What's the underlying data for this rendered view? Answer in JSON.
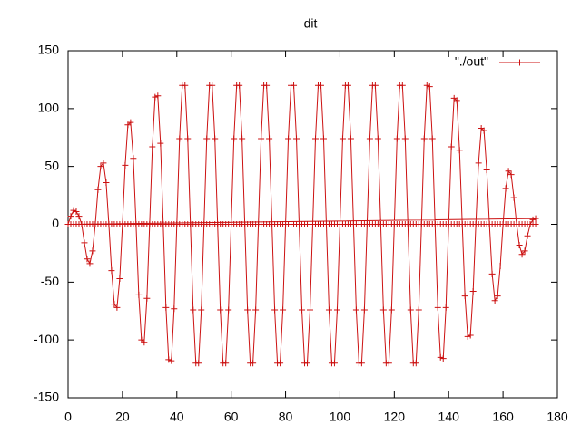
{
  "chart_data": {
    "type": "linespoints",
    "title": "dit",
    "xlim": [
      0,
      180
    ],
    "xticks": [
      0,
      20,
      40,
      60,
      80,
      100,
      120,
      140,
      160,
      180
    ],
    "ylim": [
      -150,
      150
    ],
    "yticks": [
      -150,
      -100,
      -50,
      0,
      50,
      100,
      150
    ],
    "legend": "top-right",
    "series": [
      {
        "name": "\"./out\"",
        "color": "#cc1111",
        "x": [
          0,
          1,
          2,
          3,
          4,
          5,
          6,
          7,
          8,
          9,
          10,
          11,
          12,
          13,
          14,
          15,
          16,
          17,
          18,
          19,
          20,
          21,
          22,
          23,
          24,
          25,
          26,
          27,
          28,
          29,
          30,
          31,
          32,
          33,
          34,
          35,
          36,
          37,
          38,
          39,
          40,
          41,
          42,
          43,
          44,
          45,
          46,
          47,
          48,
          49,
          50,
          51,
          52,
          53,
          54,
          55,
          56,
          57,
          58,
          59,
          60,
          61,
          62,
          63,
          64,
          65,
          66,
          67,
          68,
          69,
          70,
          71,
          72,
          73,
          74,
          75,
          76,
          77,
          78,
          79,
          80,
          81,
          82,
          83,
          84,
          85,
          86,
          87,
          88,
          89,
          90,
          91,
          92,
          93,
          94,
          95,
          96,
          97,
          98,
          99,
          100,
          101,
          102,
          103,
          104,
          105,
          106,
          107,
          108,
          109,
          110,
          111,
          112,
          113,
          114,
          115,
          116,
          117,
          118,
          119,
          120,
          121,
          122,
          123,
          124,
          125,
          126,
          127,
          128,
          129,
          130,
          131,
          132,
          133,
          134,
          135,
          136,
          137,
          138,
          139,
          140,
          141,
          142,
          143,
          144,
          145,
          146,
          147,
          148,
          149,
          150,
          151,
          152,
          153,
          154,
          155,
          156,
          157,
          158,
          159,
          160,
          161,
          162,
          163,
          164,
          165,
          166,
          167,
          168,
          169,
          170,
          171,
          172,
          0,
          1,
          2,
          3,
          4,
          5,
          6,
          7,
          8,
          9,
          10,
          11,
          12,
          13,
          14,
          15,
          16,
          17,
          18,
          19,
          20,
          21,
          22,
          23,
          24,
          25,
          26,
          27,
          28,
          29,
          30,
          31,
          32,
          33,
          34,
          35,
          36,
          37,
          38,
          39,
          40,
          41,
          42,
          43,
          44,
          45,
          46,
          47,
          48,
          49,
          50,
          51,
          52,
          53,
          54,
          55,
          56,
          57,
          58,
          59,
          60,
          61,
          62,
          63,
          64,
          65,
          66,
          67,
          68,
          69,
          70,
          71,
          72,
          73,
          74,
          75,
          76,
          77,
          78,
          79,
          80,
          81,
          82,
          83,
          84,
          85,
          86,
          87,
          88,
          89,
          90,
          91,
          92,
          93,
          94,
          95,
          96,
          97,
          98,
          99,
          100,
          101,
          102,
          103,
          104,
          105,
          106,
          107,
          108,
          109,
          110,
          111,
          112,
          113,
          114,
          115,
          116,
          117,
          118,
          119,
          120,
          121,
          122,
          123,
          124,
          125,
          126,
          127,
          128,
          129,
          130,
          131,
          132,
          133,
          134,
          135,
          136,
          137,
          138,
          139,
          140,
          141,
          142,
          143,
          144,
          145,
          146,
          147,
          148,
          149,
          150,
          151,
          152,
          153,
          154,
          155,
          156,
          157,
          158,
          159,
          160,
          161,
          162,
          163,
          164,
          165,
          166,
          167,
          168,
          169,
          170,
          171,
          172
        ],
        "values": [
          0,
          7,
          12,
          11,
          7,
          0,
          -16,
          -30,
          -34,
          -23,
          0,
          30,
          50,
          53,
          36,
          0,
          -40,
          -69,
          -72,
          -47,
          0,
          51,
          86,
          88,
          57,
          0,
          -61,
          -100,
          -102,
          -64,
          0,
          67,
          110,
          111,
          70,
          0,
          -72,
          -117,
          -118,
          -73,
          0,
          74,
          120,
          120,
          74,
          0,
          -74,
          -120,
          -120,
          -74,
          0,
          74,
          120,
          120,
          74,
          0,
          -74,
          -120,
          -120,
          -74,
          0,
          74,
          120,
          120,
          74,
          0,
          -74,
          -120,
          -120,
          -74,
          0,
          74,
          120,
          120,
          74,
          0,
          -74,
          -120,
          -120,
          -74,
          0,
          74,
          120,
          120,
          74,
          0,
          -74,
          -120,
          -120,
          -74,
          0,
          74,
          120,
          120,
          74,
          0,
          -74,
          -120,
          -120,
          -74,
          0,
          74,
          120,
          120,
          74,
          0,
          -74,
          -120,
          -120,
          -74,
          0,
          74,
          120,
          120,
          74,
          0,
          -74,
          -120,
          -120,
          -74,
          0,
          74,
          120,
          120,
          74,
          0,
          -74,
          -120,
          -120,
          -74,
          0,
          74,
          120,
          119,
          74,
          0,
          -72,
          -115,
          -116,
          -72,
          0,
          67,
          109,
          107,
          64,
          0,
          -62,
          -97,
          -96,
          -58,
          0,
          53,
          83,
          81,
          47,
          0,
          -43,
          -66,
          -62,
          -36,
          0,
          31,
          46,
          43,
          23,
          0,
          -18,
          -26,
          -23,
          -10,
          0,
          4,
          5,
          0,
          0,
          0,
          0,
          0,
          0,
          0,
          0,
          0,
          0,
          0,
          0,
          0,
          0,
          0,
          0,
          0,
          0,
          0,
          0,
          0,
          0,
          0,
          0,
          0,
          0,
          0,
          0,
          0,
          0,
          0,
          0,
          0,
          0,
          0,
          0,
          0,
          0,
          0,
          0,
          0,
          0,
          0,
          0,
          0,
          0,
          0,
          0,
          0,
          0,
          0,
          0,
          0,
          0,
          0,
          0,
          0,
          0,
          0,
          0,
          0,
          0,
          0,
          0,
          0,
          0,
          0,
          0,
          0,
          0,
          0,
          0,
          0,
          0,
          0,
          0,
          0,
          0,
          0,
          0,
          0,
          0,
          0,
          0,
          0,
          0,
          0,
          0,
          0,
          0,
          0,
          0,
          0,
          0,
          0,
          0,
          0,
          0,
          0,
          0,
          0,
          0,
          0,
          0,
          0,
          0,
          0,
          0,
          0,
          0,
          0,
          0,
          0,
          0,
          0,
          0,
          0,
          0,
          0,
          0,
          0,
          0,
          0,
          0,
          0,
          0,
          0,
          0,
          0,
          0,
          0,
          0,
          0,
          0,
          0,
          0,
          0,
          0,
          0,
          0,
          0,
          0,
          0,
          0,
          0,
          0,
          0,
          0,
          0,
          0,
          0,
          0,
          0,
          0,
          0,
          0,
          0,
          0,
          0,
          0,
          0,
          0,
          0,
          0,
          0,
          0,
          0,
          0,
          0,
          0,
          0,
          0,
          0
        ]
      }
    ]
  }
}
